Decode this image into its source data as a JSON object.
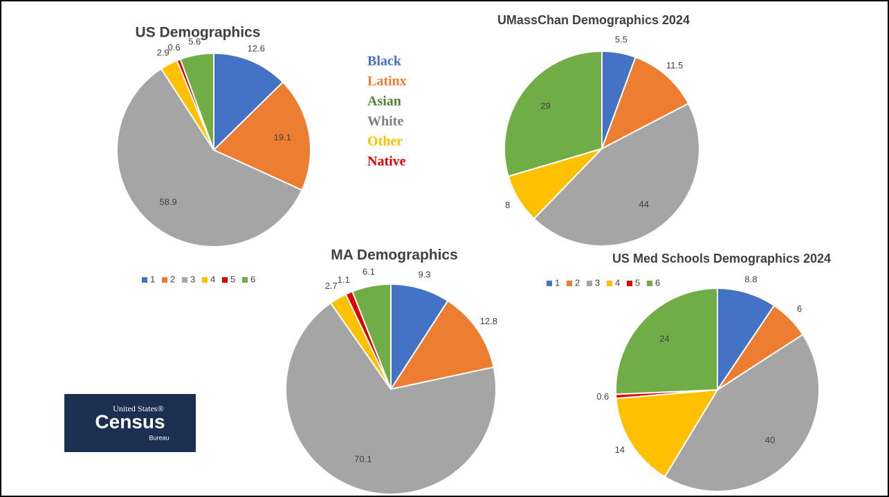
{
  "chart_data": [
    {
      "type": "pie",
      "title": "US Demographics",
      "categories": [
        "1",
        "2",
        "3",
        "4",
        "5",
        "6"
      ],
      "values": [
        12.6,
        19.1,
        58.9,
        2.9,
        0.6,
        5.6
      ],
      "colors": [
        "#4472c4",
        "#ed7d31",
        "#a5a5a5",
        "#ffc000",
        "#e00000",
        "#70ad47"
      ],
      "legend": true
    },
    {
      "type": "pie",
      "title": "UMassChan Demographics 2024",
      "values": [
        5.5,
        11.5,
        44,
        8,
        29
      ],
      "colors": [
        "#4472c4",
        "#ed7d31",
        "#a5a5a5",
        "#ffc000",
        "#70ad47"
      ],
      "legend": false
    },
    {
      "type": "pie",
      "title": "MA Demographics",
      "values": [
        9.3,
        12.8,
        70.1,
        2.7,
        1.1,
        6.1
      ],
      "colors": [
        "#4472c4",
        "#ed7d31",
        "#a5a5a5",
        "#ffc000",
        "#e00000",
        "#70ad47"
      ],
      "legend": false
    },
    {
      "type": "pie",
      "title": "US Med Schools Demographics 2024",
      "categories": [
        "1",
        "2",
        "3",
        "4",
        "5",
        "6"
      ],
      "values": [
        8.8,
        6,
        40,
        14,
        0.6,
        24
      ],
      "colors": [
        "#4472c4",
        "#ed7d31",
        "#a5a5a5",
        "#ffc000",
        "#e00000",
        "#70ad47"
      ],
      "legend": true
    }
  ],
  "key": [
    {
      "label": "Black",
      "color": "#4472c4"
    },
    {
      "label": "Latinx",
      "color": "#ed7d31"
    },
    {
      "label": "Asian",
      "color": "#548235"
    },
    {
      "label": "White",
      "color": "#7f7f7f"
    },
    {
      "label": "Other",
      "color": "#ffc000"
    },
    {
      "label": "Native",
      "color": "#e00000"
    }
  ],
  "logo": {
    "top": "United States®",
    "name": "Census",
    "bottom": "Bureau"
  }
}
